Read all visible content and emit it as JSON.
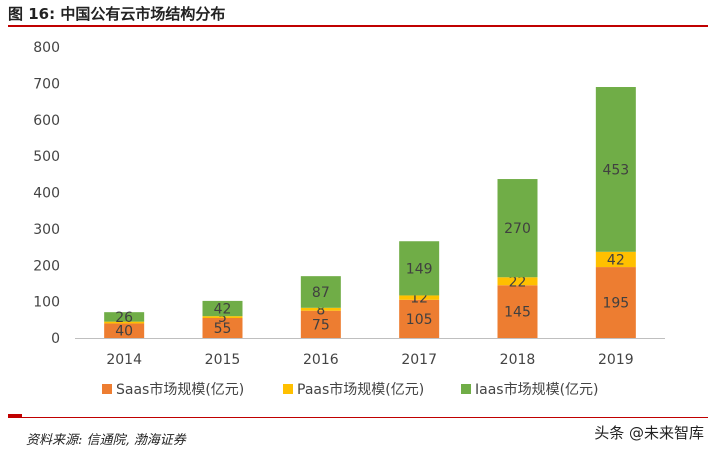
{
  "figure": {
    "title": "图 16:  中国公有云市场结构分布",
    "source": "资料来源: 信通院, 渤海证券",
    "watermark": "头条 @未来智库"
  },
  "chart_data": {
    "type": "bar",
    "stacked": true,
    "categories": [
      "2014",
      "2015",
      "2016",
      "2017",
      "2018",
      "2019"
    ],
    "series": [
      {
        "name": "Saas市场规模(亿元)",
        "color": "#ed7d31",
        "values": [
          40,
          55,
          75,
          105,
          145,
          195
        ]
      },
      {
        "name": "Paas市场规模(亿元)",
        "color": "#ffc000",
        "values": [
          5,
          5,
          8,
          12,
          22,
          42
        ]
      },
      {
        "name": "Iaas市场规模(亿元)",
        "color": "#70ad47",
        "values": [
          26,
          42,
          87,
          149,
          270,
          453
        ]
      }
    ],
    "data_labels": [
      [
        "40",
        "55",
        "75",
        "105",
        "145",
        "195"
      ],
      [
        "",
        "5",
        "8",
        "12",
        "22",
        "42"
      ],
      [
        "26",
        "42",
        "87",
        "149",
        "270",
        "453"
      ]
    ],
    "ylim": [
      0,
      800
    ],
    "yticks": [
      0,
      100,
      200,
      300,
      400,
      500,
      600,
      700,
      800
    ],
    "grid": false,
    "legend_position": "bottom"
  }
}
